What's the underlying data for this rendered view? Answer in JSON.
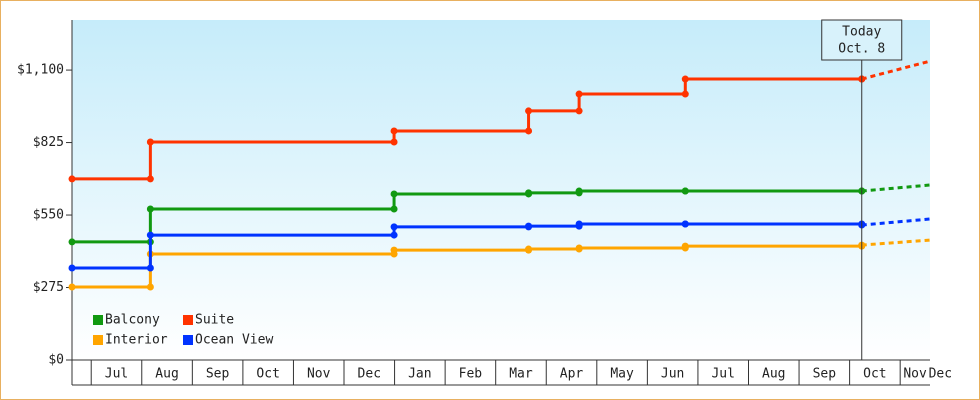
{
  "chart_data": {
    "type": "step-line",
    "xlim": [
      0.62,
      17.59
    ],
    "xticks": [
      {
        "value": 1,
        "label": "Jul"
      },
      {
        "value": 2,
        "label": "Aug"
      },
      {
        "value": 3,
        "label": "Sep"
      },
      {
        "value": 4,
        "label": "Oct"
      },
      {
        "value": 5,
        "label": "Nov"
      },
      {
        "value": 6,
        "label": "Dec"
      },
      {
        "value": 7,
        "label": "Jan"
      },
      {
        "value": 8,
        "label": "Feb"
      },
      {
        "value": 9,
        "label": "Mar"
      },
      {
        "value": 10,
        "label": "Apr"
      },
      {
        "value": 11,
        "label": "May"
      },
      {
        "value": 12,
        "label": "Jun"
      },
      {
        "value": 13,
        "label": "Jul"
      },
      {
        "value": 14,
        "label": "Aug"
      },
      {
        "value": 15,
        "label": "Sep"
      },
      {
        "value": 16,
        "label": "Oct"
      },
      {
        "value": 17,
        "label": "Nov"
      },
      {
        "value": 18,
        "label": "Dec"
      }
    ],
    "ylim": [
      0,
      1290
    ],
    "yticks": [
      {
        "value": 0,
        "label": "$0"
      },
      {
        "value": 275,
        "label": "$275"
      },
      {
        "value": 550,
        "label": "$550"
      },
      {
        "value": 825,
        "label": "$825"
      },
      {
        "value": 1100,
        "label": "$1,100"
      }
    ],
    "legend": "bottom-left",
    "series": [
      {
        "name": "Balcony",
        "color": "#119911",
        "x": [
          0.62,
          2.17,
          6.99,
          9.65,
          10.65,
          12.75,
          16.24
        ],
        "values": [
          448,
          573,
          630,
          634,
          641,
          641,
          641
        ],
        "forecast": {
          "x": 17.59,
          "value": 664
        }
      },
      {
        "name": "Suite",
        "color": "#ff3300",
        "x": [
          0.62,
          2.17,
          6.99,
          9.65,
          10.65,
          12.75,
          16.24
        ],
        "values": [
          687,
          827,
          869,
          945,
          1009,
          1066,
          1066
        ],
        "forecast": {
          "x": 17.59,
          "value": 1134
        }
      },
      {
        "name": "Interior",
        "color": "#ffa500",
        "x": [
          0.62,
          2.17,
          6.99,
          9.65,
          10.65,
          12.75,
          16.24
        ],
        "values": [
          277,
          402,
          417,
          421,
          425,
          432,
          436
        ],
        "forecast": {
          "x": 17.59,
          "value": 455
        }
      },
      {
        "name": "Ocean View",
        "color": "#0033ff",
        "x": [
          0.62,
          2.17,
          6.99,
          9.65,
          10.65,
          12.75,
          16.24
        ],
        "values": [
          349,
          474,
          505,
          508,
          516,
          516,
          512
        ],
        "forecast": {
          "x": 17.59,
          "value": 535
        }
      }
    ],
    "today": {
      "x": 16.24,
      "lines": [
        "Today",
        "Oct. 8"
      ]
    }
  }
}
